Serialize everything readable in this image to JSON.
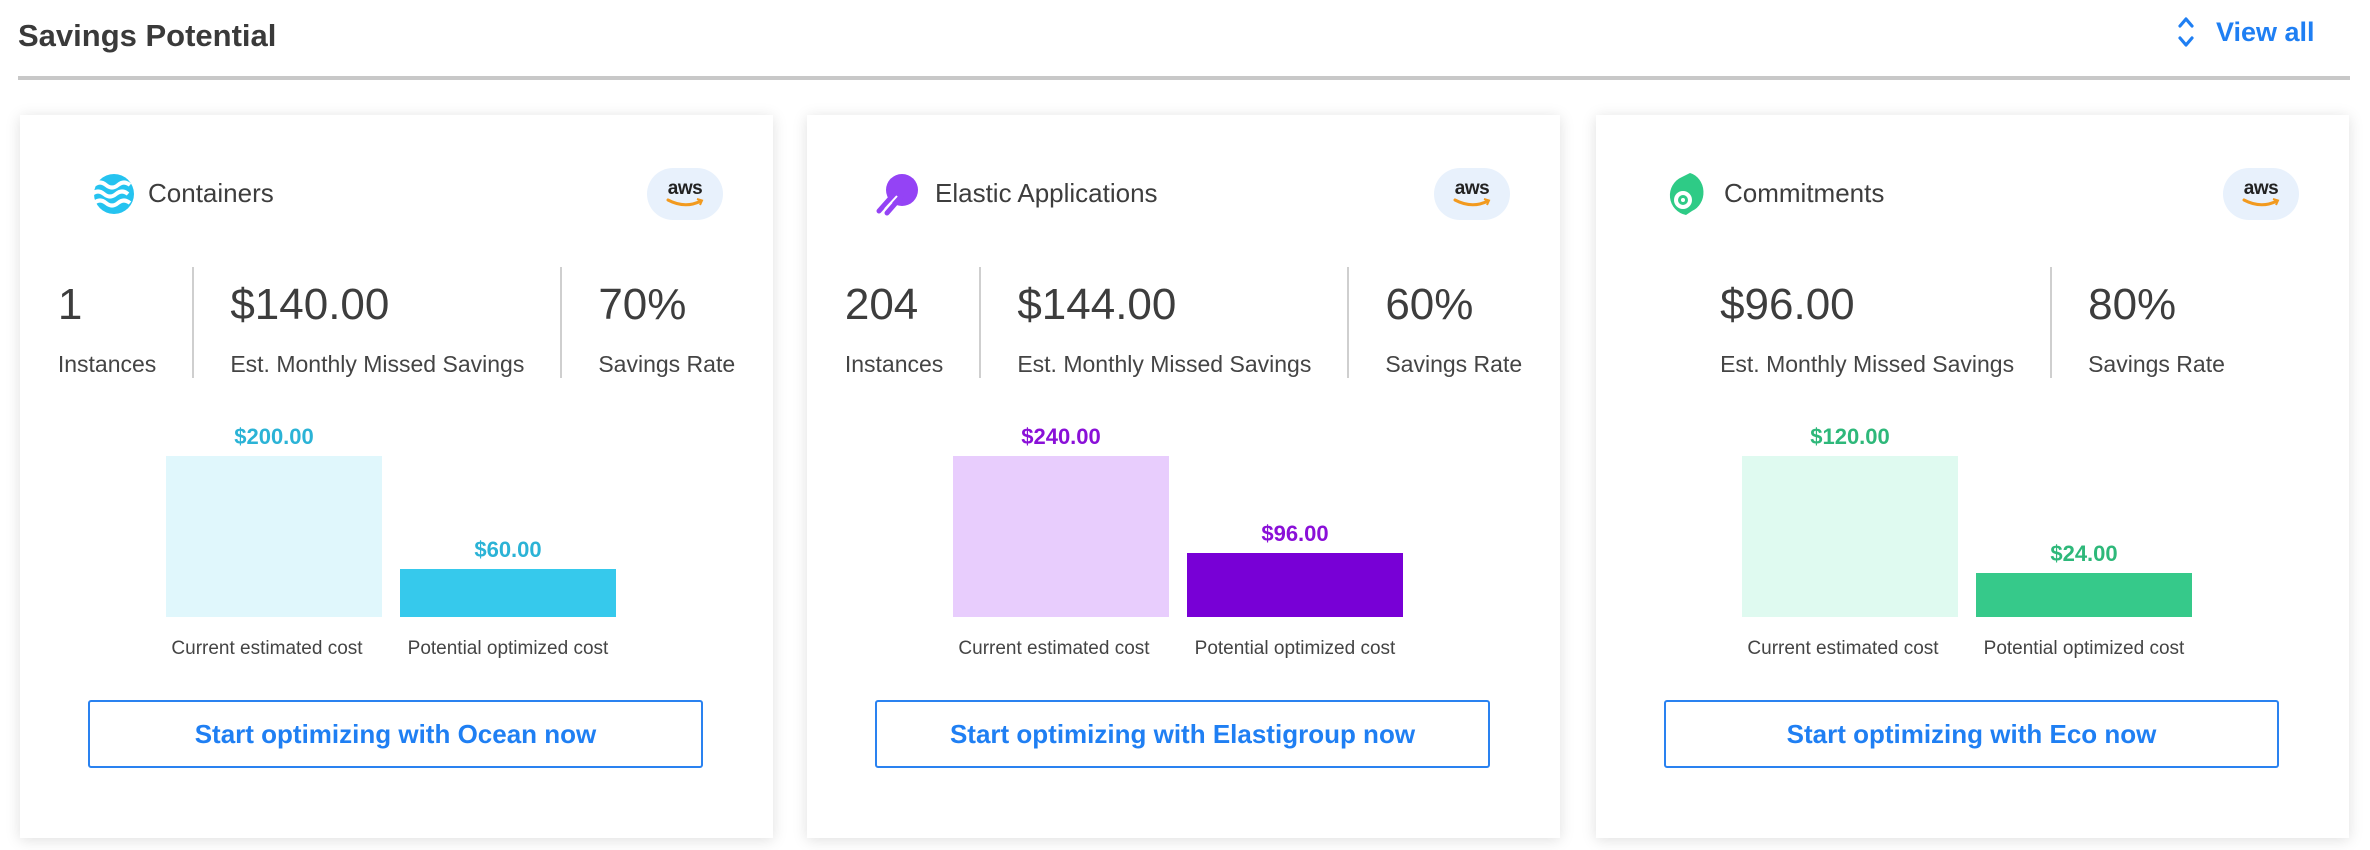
{
  "header": {
    "title": "Savings Potential",
    "view_all": "View all",
    "view_all_icon": "chevron-up-down-icon"
  },
  "accent": "#1f7ff3",
  "cards": [
    {
      "title": "Containers",
      "icon": "ocean-waves-icon",
      "provider": "aws",
      "stats": [
        {
          "value": "1",
          "label": "Instances"
        },
        {
          "value": "$140.00",
          "label": "Est. Monthly Missed Savings"
        },
        {
          "value": "70%",
          "label": "Savings Rate"
        }
      ],
      "chart_data": {
        "type": "bar",
        "categories": [
          "Current estimated cost",
          "Potential optimized cost"
        ],
        "values": [
          200,
          60
        ],
        "value_labels": [
          "$200.00",
          "$60.00"
        ]
      },
      "colors": {
        "light": "#e0f7fc",
        "dark": "#36c9ec",
        "label": "#2bb3d6"
      },
      "button": "Start optimizing with Ocean now"
    },
    {
      "title": "Elastic Applications",
      "icon": "elastigroup-rocket-icon",
      "provider": "aws",
      "stats": [
        {
          "value": "204",
          "label": "Instances"
        },
        {
          "value": "$144.00",
          "label": "Est. Monthly Missed Savings"
        },
        {
          "value": "60%",
          "label": "Savings Rate"
        }
      ],
      "chart_data": {
        "type": "bar",
        "categories": [
          "Current estimated cost",
          "Potential optimized cost"
        ],
        "values": [
          240,
          96
        ],
        "value_labels": [
          "$240.00",
          "$96.00"
        ]
      },
      "colors": {
        "light": "#e8cdfd",
        "dark": "#7800d6",
        "label": "#8a10d8"
      },
      "button": "Start optimizing with Elastigroup now"
    },
    {
      "title": "Commitments",
      "icon": "eco-icon",
      "provider": "aws",
      "stats": [
        {
          "value": "$96.00",
          "label": "Est. Monthly Missed Savings"
        },
        {
          "value": "80%",
          "label": "Savings Rate"
        }
      ],
      "chart_data": {
        "type": "bar",
        "categories": [
          "Current estimated cost",
          "Potential optimized cost"
        ],
        "values": [
          120,
          24
        ],
        "value_labels": [
          "$120.00",
          "$24.00"
        ]
      },
      "colors": {
        "light": "#dffaf0",
        "dark": "#36c98a",
        "label": "#2eb87a"
      },
      "button": "Start optimizing with Eco now"
    }
  ]
}
